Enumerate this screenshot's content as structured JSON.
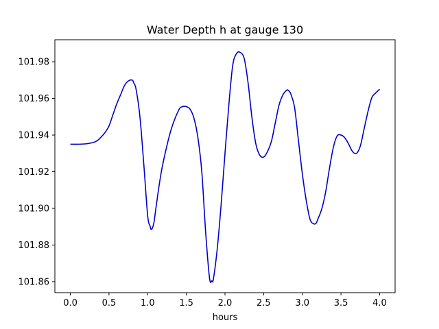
{
  "chart_data": {
    "type": "line",
    "title": "Water Depth h at gauge 130",
    "xlabel": "hours",
    "ylabel": "",
    "xlim": [
      -0.2,
      4.2
    ],
    "ylim": [
      101.854,
      101.992
    ],
    "xticks": [
      0.0,
      0.5,
      1.0,
      1.5,
      2.0,
      2.5,
      3.0,
      3.5,
      4.0
    ],
    "xtick_labels": [
      "0.0",
      "0.5",
      "1.0",
      "1.5",
      "2.0",
      "2.5",
      "3.0",
      "3.5",
      "4.0"
    ],
    "yticks": [
      101.86,
      101.88,
      101.9,
      101.92,
      101.94,
      101.96,
      101.98
    ],
    "ytick_labels": [
      "101.86",
      "101.88",
      "101.90",
      "101.92",
      "101.94",
      "101.96",
      "101.98"
    ],
    "grid": false,
    "series": [
      {
        "color": "#0000cc",
        "x": [
          0.0,
          0.1,
          0.2,
          0.3,
          0.35,
          0.4,
          0.45,
          0.5,
          0.55,
          0.6,
          0.65,
          0.7,
          0.75,
          0.8,
          0.82,
          0.85,
          0.9,
          0.95,
          1.0,
          1.03,
          1.05,
          1.08,
          1.1,
          1.15,
          1.2,
          1.3,
          1.4,
          1.45,
          1.5,
          1.55,
          1.6,
          1.65,
          1.7,
          1.75,
          1.8,
          1.83,
          1.85,
          1.9,
          1.95,
          2.0,
          2.05,
          2.1,
          2.15,
          2.2,
          2.25,
          2.3,
          2.35,
          2.4,
          2.45,
          2.5,
          2.55,
          2.6,
          2.65,
          2.7,
          2.75,
          2.8,
          2.82,
          2.85,
          2.9,
          2.95,
          3.0,
          3.05,
          3.1,
          3.15,
          3.18,
          3.2,
          3.25,
          3.3,
          3.35,
          3.4,
          3.45,
          3.5,
          3.55,
          3.6,
          3.65,
          3.7,
          3.75,
          3.8,
          3.85,
          3.9,
          3.95,
          4.0
        ],
        "y": [
          101.935,
          101.935,
          101.9352,
          101.936,
          101.937,
          101.939,
          101.9415,
          101.945,
          101.951,
          101.957,
          101.962,
          101.967,
          101.9695,
          101.97,
          101.9685,
          101.965,
          101.95,
          101.924,
          101.896,
          101.8905,
          101.8885,
          101.892,
          101.898,
          101.913,
          101.925,
          101.9425,
          101.9535,
          101.9555,
          101.9555,
          101.954,
          101.949,
          101.9385,
          101.92,
          101.887,
          101.862,
          101.8605,
          101.8615,
          101.878,
          101.902,
          101.93,
          101.9565,
          101.978,
          101.9845,
          101.985,
          101.9815,
          101.968,
          101.949,
          101.935,
          101.929,
          101.928,
          101.931,
          101.9365,
          101.9465,
          101.9565,
          101.962,
          101.9645,
          101.9643,
          101.9625,
          101.955,
          101.937,
          101.919,
          101.9045,
          101.894,
          101.8915,
          101.892,
          101.894,
          101.8995,
          101.9085,
          101.9215,
          101.933,
          101.9395,
          101.94,
          101.9385,
          101.935,
          101.931,
          101.93,
          101.934,
          101.9435,
          101.953,
          101.9605,
          101.963,
          101.965
        ]
      }
    ]
  }
}
